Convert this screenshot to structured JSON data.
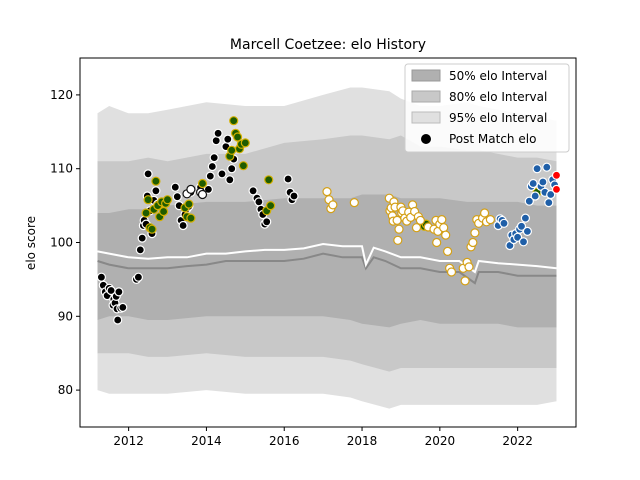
{
  "chart_data": {
    "type": "scatter",
    "title": "Marcell Coetzee: elo History",
    "xlabel": "",
    "ylabel": "elo score",
    "xlim": [
      2010.75,
      2023.5
    ],
    "ylim": [
      75,
      125
    ],
    "x_ticks": [
      2012,
      2014,
      2016,
      2018,
      2020,
      2022
    ],
    "y_ticks": [
      80,
      90,
      100,
      110,
      120
    ],
    "grid": false,
    "legend_position": "top-right",
    "legend": [
      {
        "label": "50% elo Interval",
        "kind": "band",
        "color": "#b0b0b0"
      },
      {
        "label": "80% elo Interval",
        "kind": "band",
        "color": "#c8c8c8"
      },
      {
        "label": "95% elo Interval",
        "kind": "band",
        "color": "#e0e0e0"
      },
      {
        "label": "Post Match elo",
        "kind": "marker",
        "color": "#000000"
      }
    ],
    "bands": {
      "x": [
        2011.2,
        2011.5,
        2012.0,
        2012.5,
        2013.0,
        2014.0,
        2015.0,
        2016.0,
        2017.0,
        2017.7,
        2018.0,
        2018.7,
        2019.0,
        2019.5,
        2020.0,
        2020.7,
        2021.0,
        2021.5,
        2022.0,
        2022.5,
        2023.0
      ],
      "p95_lo": [
        80.0,
        79.5,
        79.5,
        79.5,
        79.5,
        80.0,
        79.5,
        79.5,
        79.5,
        79.0,
        78.5,
        77.5,
        78.0,
        78.0,
        78.0,
        78.0,
        78.0,
        78.0,
        78.0,
        78.0,
        78.5
      ],
      "p95_hi": [
        117.5,
        118.5,
        117.5,
        117.5,
        118.0,
        119.0,
        118.5,
        118.5,
        120.0,
        121.0,
        121.0,
        120.5,
        119.5,
        118.5,
        118.5,
        119.0,
        118.5,
        118.0,
        117.5,
        117.0,
        116.5
      ],
      "p80_lo": [
        85.0,
        85.0,
        85.0,
        84.5,
        84.5,
        85.0,
        84.5,
        84.5,
        84.5,
        84.0,
        83.5,
        82.5,
        83.0,
        83.0,
        83.0,
        83.0,
        83.0,
        83.0,
        83.0,
        83.0,
        83.0
      ],
      "p80_hi": [
        111.0,
        111.0,
        111.0,
        111.5,
        111.0,
        112.0,
        112.0,
        113.5,
        114.0,
        114.5,
        114.5,
        114.0,
        114.5,
        113.0,
        113.0,
        112.5,
        112.5,
        112.0,
        111.5,
        111.5,
        111.0
      ],
      "p50_lo": [
        89.5,
        90.0,
        90.0,
        89.5,
        89.5,
        90.0,
        90.0,
        90.0,
        90.0,
        89.5,
        89.0,
        88.5,
        89.0,
        89.5,
        89.0,
        89.0,
        89.0,
        89.0,
        88.5,
        88.5,
        88.5
      ],
      "p50_hi": [
        104.0,
        104.0,
        104.5,
        104.5,
        105.0,
        105.5,
        105.5,
        106.0,
        106.0,
        106.0,
        106.5,
        106.5,
        106.0,
        106.0,
        106.0,
        105.5,
        105.5,
        105.5,
        105.5,
        105.0,
        105.0
      ]
    },
    "median_line": {
      "color": "#888888",
      "x": [
        2011.2,
        2011.5,
        2012.0,
        2012.5,
        2013.0,
        2013.5,
        2014.0,
        2014.5,
        2015.0,
        2015.5,
        2016.0,
        2016.5,
        2017.0,
        2017.5,
        2018.0,
        2018.1,
        2018.3,
        2018.6,
        2019.0,
        2019.5,
        2020.0,
        2020.5,
        2020.9,
        2021.0,
        2021.5,
        2022.0,
        2022.5,
        2023.0
      ],
      "y": [
        97.5,
        97.0,
        96.5,
        96.5,
        96.5,
        96.8,
        97.0,
        97.5,
        97.5,
        97.5,
        97.5,
        97.8,
        98.5,
        98.0,
        98.0,
        96.5,
        98.0,
        97.5,
        96.5,
        96.5,
        96.0,
        96.0,
        94.5,
        96.0,
        96.0,
        95.5,
        95.5,
        95.5
      ]
    },
    "mean_line": {
      "color": "#ffffff",
      "x": [
        2011.2,
        2011.5,
        2012.0,
        2012.5,
        2013.0,
        2013.5,
        2014.0,
        2014.5,
        2015.0,
        2015.5,
        2016.0,
        2016.5,
        2017.0,
        2017.5,
        2018.0,
        2018.1,
        2018.3,
        2018.6,
        2019.0,
        2019.5,
        2020.0,
        2020.5,
        2020.9,
        2021.0,
        2021.5,
        2022.0,
        2022.5,
        2023.0
      ],
      "y": [
        98.8,
        98.5,
        98.0,
        97.8,
        98.0,
        98.0,
        98.5,
        98.5,
        98.8,
        99.0,
        99.0,
        99.2,
        99.8,
        99.5,
        99.5,
        97.0,
        99.3,
        98.8,
        98.0,
        98.0,
        97.5,
        97.5,
        96.0,
        97.5,
        97.2,
        97.0,
        96.8,
        96.5
      ]
    },
    "series": [
      {
        "color": "#000000",
        "edge": "#ffffff",
        "points": [
          [
            2011.3,
            95.3
          ],
          [
            2011.35,
            94.2
          ],
          [
            2011.4,
            93.3
          ],
          [
            2011.45,
            92.8
          ],
          [
            2011.5,
            93.8
          ],
          [
            2011.55,
            93.5
          ],
          [
            2011.6,
            91.5
          ],
          [
            2011.62,
            92.3
          ],
          [
            2011.65,
            91.8
          ],
          [
            2011.68,
            92.7
          ],
          [
            2011.7,
            91.0
          ],
          [
            2011.72,
            89.5
          ],
          [
            2011.75,
            93.3
          ],
          [
            2011.8,
            91.1
          ],
          [
            2011.85,
            91.2
          ]
        ]
      },
      {
        "color": "#000000",
        "edge": "#ffffff",
        "points": [
          [
            2012.2,
            95.0
          ],
          [
            2012.25,
            95.3
          ],
          [
            2012.3,
            99.0
          ],
          [
            2012.35,
            100.6
          ],
          [
            2012.38,
            102.3
          ],
          [
            2012.4,
            103.0
          ],
          [
            2012.45,
            102.5
          ],
          [
            2012.48,
            106.3
          ],
          [
            2012.5,
            109.3
          ],
          [
            2012.55,
            104.3
          ],
          [
            2012.6,
            101.2
          ],
          [
            2012.65,
            105.7
          ],
          [
            2012.7,
            107.0
          ],
          [
            2012.75,
            105.2
          ],
          [
            2013.2,
            107.5
          ],
          [
            2013.25,
            106.2
          ],
          [
            2013.3,
            105.0
          ],
          [
            2013.35,
            103.0
          ],
          [
            2013.4,
            102.3
          ],
          [
            2013.45,
            103.8
          ],
          [
            2013.5,
            104.6
          ],
          [
            2013.55,
            104.9
          ],
          [
            2013.6,
            106.8
          ],
          [
            2013.85,
            107.5
          ],
          [
            2014.05,
            107.2
          ],
          [
            2014.1,
            109.0
          ],
          [
            2014.15,
            110.3
          ],
          [
            2014.2,
            111.5
          ],
          [
            2014.25,
            113.8
          ],
          [
            2014.3,
            114.8
          ],
          [
            2014.4,
            109.3
          ],
          [
            2014.5,
            113.0
          ],
          [
            2014.55,
            114.0
          ],
          [
            2014.6,
            108.5
          ],
          [
            2014.65,
            110.0
          ],
          [
            2014.7,
            111.3
          ],
          [
            2015.2,
            107.0
          ],
          [
            2015.3,
            106.0
          ],
          [
            2015.35,
            105.5
          ],
          [
            2015.4,
            104.5
          ],
          [
            2015.45,
            103.8
          ],
          [
            2015.5,
            102.5
          ],
          [
            2015.55,
            102.8
          ],
          [
            2016.1,
            108.6
          ],
          [
            2016.15,
            106.8
          ],
          [
            2016.2,
            105.8
          ],
          [
            2016.25,
            106.3
          ]
        ]
      },
      {
        "color": "#1f5c00",
        "edge": "#d4b000",
        "points": [
          [
            2012.45,
            104.0
          ],
          [
            2012.5,
            105.8
          ],
          [
            2012.55,
            102.0
          ],
          [
            2012.6,
            101.8
          ],
          [
            2012.65,
            104.5
          ],
          [
            2012.7,
            108.3
          ],
          [
            2012.75,
            105.0
          ],
          [
            2012.8,
            103.5
          ],
          [
            2012.85,
            105.5
          ],
          [
            2012.9,
            104.2
          ],
          [
            2012.95,
            105.3
          ],
          [
            2013.0,
            105.8
          ],
          [
            2013.45,
            104.7
          ],
          [
            2013.5,
            103.5
          ],
          [
            2013.55,
            105.2
          ],
          [
            2013.6,
            103.3
          ],
          [
            2013.9,
            108.0
          ],
          [
            2014.6,
            111.7
          ],
          [
            2014.65,
            112.5
          ],
          [
            2014.7,
            116.5
          ],
          [
            2014.75,
            114.8
          ],
          [
            2014.8,
            114.3
          ],
          [
            2014.85,
            112.7
          ],
          [
            2014.9,
            113.3
          ],
          [
            2014.95,
            110.4
          ],
          [
            2015.0,
            113.5
          ],
          [
            2015.55,
            104.3
          ],
          [
            2015.6,
            108.5
          ],
          [
            2015.65,
            105.0
          ],
          [
            2019.6,
            102.2
          ],
          [
            2019.65,
            102.5
          ],
          [
            2022.5,
            106.8
          ]
        ]
      },
      {
        "color": "#ffffff",
        "edge": "#111111",
        "points": [
          [
            2013.5,
            106.6
          ],
          [
            2013.6,
            107.2
          ],
          [
            2013.85,
            106.8
          ],
          [
            2013.9,
            106.5
          ]
        ]
      },
      {
        "color": "#ffffff",
        "edge": "#d4a017",
        "points": [
          [
            2017.1,
            106.9
          ],
          [
            2017.15,
            105.8
          ],
          [
            2017.2,
            104.6
          ],
          [
            2017.25,
            105.1
          ],
          [
            2017.8,
            105.4
          ],
          [
            2018.7,
            106.0
          ],
          [
            2018.72,
            104.3
          ],
          [
            2018.75,
            104.7
          ],
          [
            2018.78,
            103.6
          ],
          [
            2018.8,
            102.9
          ],
          [
            2018.82,
            105.5
          ],
          [
            2018.85,
            104.8
          ],
          [
            2018.9,
            103.0
          ],
          [
            2018.92,
            100.3
          ],
          [
            2018.95,
            101.8
          ],
          [
            2019.0,
            104.8
          ],
          [
            2019.02,
            104.0
          ],
          [
            2019.05,
            104.3
          ],
          [
            2019.1,
            103.3
          ],
          [
            2019.15,
            102.9
          ],
          [
            2019.2,
            104.1
          ],
          [
            2019.25,
            103.4
          ],
          [
            2019.3,
            105.1
          ],
          [
            2019.35,
            104.2
          ],
          [
            2019.4,
            102.0
          ],
          [
            2019.45,
            103.5
          ],
          [
            2019.5,
            103.0
          ],
          [
            2019.7,
            102.1
          ],
          [
            2019.85,
            101.8
          ],
          [
            2019.9,
            103.0
          ],
          [
            2019.92,
            100.0
          ],
          [
            2019.95,
            101.5
          ],
          [
            2020.0,
            102.5
          ],
          [
            2020.05,
            103.1
          ],
          [
            2020.1,
            102.0
          ],
          [
            2020.15,
            101.0
          ],
          [
            2020.2,
            98.8
          ],
          [
            2020.25,
            96.5
          ],
          [
            2020.3,
            96.0
          ],
          [
            2020.6,
            96.5
          ],
          [
            2020.65,
            94.8
          ],
          [
            2020.7,
            97.3
          ],
          [
            2020.75,
            96.7
          ],
          [
            2020.8,
            99.4
          ],
          [
            2020.85,
            100.0
          ],
          [
            2020.9,
            101.3
          ],
          [
            2020.95,
            103.1
          ],
          [
            2021.0,
            102.6
          ],
          [
            2021.1,
            103.3
          ],
          [
            2021.15,
            104.0
          ],
          [
            2021.2,
            102.8
          ],
          [
            2021.3,
            103.1
          ]
        ]
      },
      {
        "color": "#1f5fa8",
        "edge": "#ffffff",
        "points": [
          [
            2021.5,
            102.3
          ],
          [
            2021.55,
            103.2
          ],
          [
            2021.6,
            103.0
          ],
          [
            2021.65,
            102.6
          ],
          [
            2021.8,
            99.6
          ],
          [
            2021.85,
            101.0
          ],
          [
            2021.9,
            100.4
          ],
          [
            2021.95,
            101.2
          ],
          [
            2022.0,
            100.7
          ],
          [
            2022.05,
            101.8
          ],
          [
            2022.1,
            102.2
          ],
          [
            2022.15,
            100.1
          ],
          [
            2022.2,
            103.3
          ],
          [
            2022.25,
            101.5
          ],
          [
            2022.3,
            105.6
          ],
          [
            2022.35,
            107.6
          ],
          [
            2022.4,
            108.0
          ],
          [
            2022.45,
            106.3
          ],
          [
            2022.5,
            110.0
          ],
          [
            2022.6,
            107.6
          ],
          [
            2022.65,
            108.2
          ],
          [
            2022.7,
            106.8
          ],
          [
            2022.75,
            110.2
          ],
          [
            2022.8,
            105.4
          ],
          [
            2022.85,
            106.5
          ],
          [
            2022.9,
            108.5
          ],
          [
            2022.95,
            107.8
          ]
        ]
      },
      {
        "color": "#ff0000",
        "edge": "#ffffff",
        "points": [
          [
            2023.0,
            109.1
          ],
          [
            2023.0,
            107.2
          ]
        ]
      }
    ]
  }
}
